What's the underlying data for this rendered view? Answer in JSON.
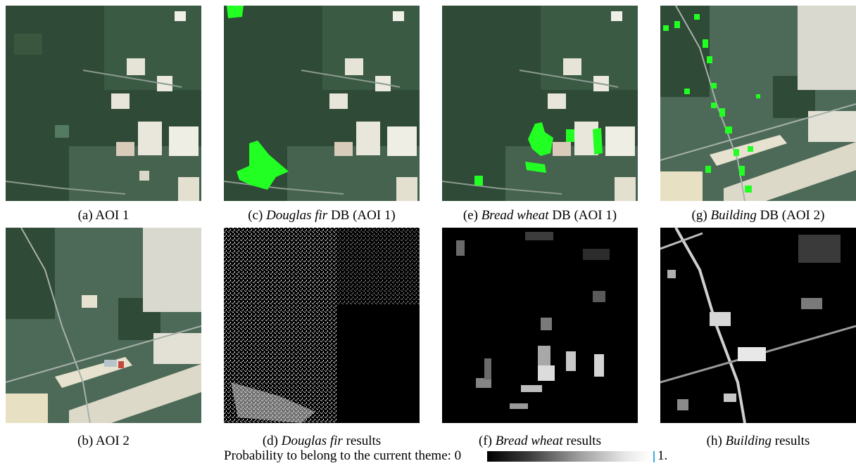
{
  "figure": {
    "panels": [
      {
        "id": "a",
        "prefix": "(a) ",
        "theme": "",
        "suffix": "AOI 1",
        "kind": "satellite-aoi1"
      },
      {
        "id": "c",
        "prefix": "(c) ",
        "theme": "Douglas fir",
        "suffix": " DB (AOI 1)",
        "kind": "satellite-aoi1-db-douglas"
      },
      {
        "id": "e",
        "prefix": "(e) ",
        "theme": "Bread wheat",
        "suffix": " DB (AOI 1)",
        "kind": "satellite-aoi1-db-wheat"
      },
      {
        "id": "g",
        "prefix": "(g) ",
        "theme": "Building",
        "suffix": " DB (AOI 2)",
        "kind": "satellite-aoi2-db-building"
      },
      {
        "id": "b",
        "prefix": "(b) ",
        "theme": "",
        "suffix": "AOI 2",
        "kind": "satellite-aoi2"
      },
      {
        "id": "d",
        "prefix": "(d) ",
        "theme": "Douglas fir",
        "suffix": " results",
        "kind": "probability-map"
      },
      {
        "id": "f",
        "prefix": "(f) ",
        "theme": "Bread wheat",
        "suffix": " results",
        "kind": "probability-map"
      },
      {
        "id": "h",
        "prefix": "(h) ",
        "theme": "Building",
        "suffix": " results",
        "kind": "probability-map"
      }
    ],
    "colorbar": {
      "label": "Probability to belong to the current theme: 0",
      "max_label": "1.",
      "min_value": 0,
      "max_value": 1
    },
    "colors": {
      "forest": "#2c4632",
      "field": "#4d6a58",
      "bare": "#e6e4d8",
      "database_overlay": "#22ff22",
      "probability_low": "#000000",
      "probability_high": "#ffffff",
      "colorbar_tick": "#37aee0"
    }
  }
}
